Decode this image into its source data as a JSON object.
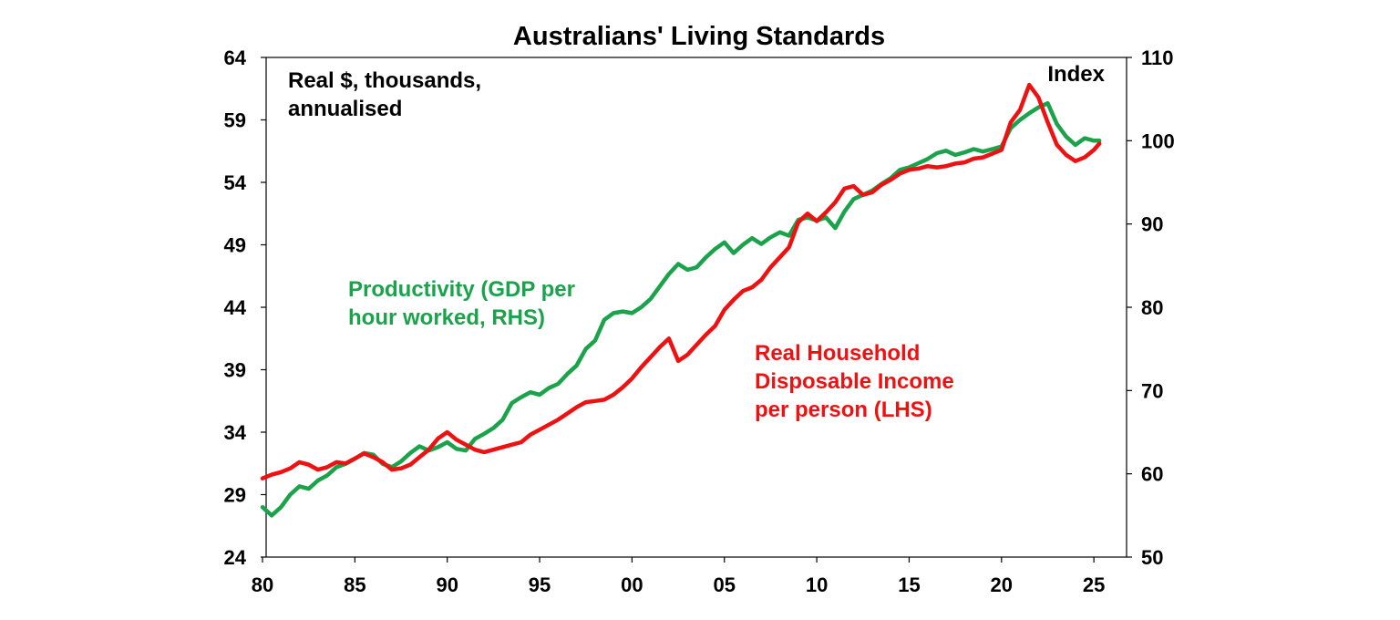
{
  "chart_data": {
    "type": "line",
    "title": "Australians' Living Standards",
    "left_axis_note": [
      "Real $, thousands,",
      "annualised"
    ],
    "right_axis_note": "Index",
    "x_axis": {
      "range": [
        1980,
        2025.5
      ],
      "ticks": [
        1980,
        1985,
        1990,
        1995,
        2000,
        2005,
        2010,
        2015,
        2020,
        2025
      ],
      "tick_labels": [
        "80",
        "85",
        "90",
        "95",
        "00",
        "05",
        "10",
        "15",
        "20",
        "25"
      ]
    },
    "y_left": {
      "range": [
        24,
        64
      ],
      "ticks": [
        24,
        29,
        34,
        39,
        44,
        49,
        54,
        59,
        64
      ]
    },
    "y_right": {
      "range": [
        50,
        110
      ],
      "ticks": [
        50,
        60,
        70,
        80,
        90,
        100,
        110
      ]
    },
    "grid": false,
    "series": [
      {
        "name": "Productivity (GDP per hour worked, RHS)",
        "label_lines": [
          "Productivity (GDP per",
          "hour worked, RHS)"
        ],
        "axis": "right",
        "color": "#1aa34a",
        "points": [
          [
            1980,
            56.0
          ],
          [
            1980.5,
            55.0
          ],
          [
            1981,
            56.0
          ],
          [
            1981.5,
            57.5
          ],
          [
            1982,
            58.5
          ],
          [
            1982.5,
            58.2
          ],
          [
            1983,
            59.2
          ],
          [
            1983.5,
            59.8
          ],
          [
            1984,
            60.8
          ],
          [
            1984.5,
            61.2
          ],
          [
            1985,
            61.8
          ],
          [
            1985.5,
            62.5
          ],
          [
            1986,
            62.3
          ],
          [
            1986.5,
            61.2
          ],
          [
            1987,
            60.8
          ],
          [
            1987.5,
            61.5
          ],
          [
            1988,
            62.5
          ],
          [
            1988.5,
            63.3
          ],
          [
            1989,
            62.8
          ],
          [
            1989.5,
            63.2
          ],
          [
            1990,
            63.8
          ],
          [
            1990.5,
            63.0
          ],
          [
            1991,
            62.8
          ],
          [
            1991.5,
            64.2
          ],
          [
            1992,
            64.8
          ],
          [
            1992.5,
            65.5
          ],
          [
            1993,
            66.5
          ],
          [
            1993.5,
            68.5
          ],
          [
            1994,
            69.2
          ],
          [
            1994.5,
            69.8
          ],
          [
            1995,
            69.5
          ],
          [
            1995.5,
            70.3
          ],
          [
            1996,
            70.8
          ],
          [
            1996.5,
            72.0
          ],
          [
            1997,
            73.0
          ],
          [
            1997.5,
            75.0
          ],
          [
            1998,
            76.0
          ],
          [
            1998.5,
            78.5
          ],
          [
            1999,
            79.3
          ],
          [
            1999.5,
            79.5
          ],
          [
            2000,
            79.3
          ],
          [
            2000.5,
            80.0
          ],
          [
            2001,
            81.0
          ],
          [
            2001.5,
            82.5
          ],
          [
            2002,
            84.0
          ],
          [
            2002.5,
            85.2
          ],
          [
            2003,
            84.5
          ],
          [
            2003.5,
            84.8
          ],
          [
            2004,
            86.0
          ],
          [
            2004.5,
            87.0
          ],
          [
            2005,
            87.8
          ],
          [
            2005.5,
            86.5
          ],
          [
            2006,
            87.5
          ],
          [
            2006.5,
            88.3
          ],
          [
            2007,
            87.6
          ],
          [
            2007.5,
            88.4
          ],
          [
            2008,
            89.0
          ],
          [
            2008.5,
            88.6
          ],
          [
            2009,
            90.5
          ],
          [
            2009.5,
            90.8
          ],
          [
            2010,
            90.4
          ],
          [
            2010.5,
            90.8
          ],
          [
            2011,
            89.5
          ],
          [
            2011.5,
            91.5
          ],
          [
            2012,
            93.0
          ],
          [
            2012.5,
            93.5
          ],
          [
            2013,
            94.0
          ],
          [
            2013.5,
            94.8
          ],
          [
            2014,
            95.5
          ],
          [
            2014.5,
            96.5
          ],
          [
            2015,
            96.8
          ],
          [
            2015.5,
            97.3
          ],
          [
            2016,
            97.8
          ],
          [
            2016.5,
            98.5
          ],
          [
            2017,
            98.8
          ],
          [
            2017.5,
            98.3
          ],
          [
            2018,
            98.6
          ],
          [
            2018.5,
            99.0
          ],
          [
            2019,
            98.7
          ],
          [
            2019.5,
            99.0
          ],
          [
            2020,
            99.3
          ],
          [
            2020.5,
            101.5
          ],
          [
            2021,
            102.5
          ],
          [
            2021.5,
            103.3
          ],
          [
            2022,
            104.0
          ],
          [
            2022.5,
            104.5
          ],
          [
            2023,
            102.0
          ],
          [
            2023.5,
            100.5
          ],
          [
            2024,
            99.5
          ],
          [
            2024.5,
            100.3
          ],
          [
            2025,
            100.0
          ],
          [
            2025.3,
            100.0
          ]
        ]
      },
      {
        "name": "Real Household Disposable Income per person (LHS)",
        "label_lines": [
          "Real Household",
          "Disposable Income",
          "per person (LHS)"
        ],
        "axis": "left",
        "color": "#ee1111",
        "points": [
          [
            1980,
            30.3
          ],
          [
            1980.5,
            30.6
          ],
          [
            1981,
            30.8
          ],
          [
            1981.5,
            31.1
          ],
          [
            1982,
            31.6
          ],
          [
            1982.5,
            31.4
          ],
          [
            1983,
            31.0
          ],
          [
            1983.5,
            31.2
          ],
          [
            1984,
            31.6
          ],
          [
            1984.5,
            31.5
          ],
          [
            1985,
            31.9
          ],
          [
            1985.5,
            32.3
          ],
          [
            1986,
            32.0
          ],
          [
            1986.5,
            31.6
          ],
          [
            1987,
            31.0
          ],
          [
            1987.5,
            31.1
          ],
          [
            1988,
            31.4
          ],
          [
            1988.5,
            32.0
          ],
          [
            1989,
            32.6
          ],
          [
            1989.5,
            33.5
          ],
          [
            1990,
            34.0
          ],
          [
            1990.5,
            33.4
          ],
          [
            1991,
            33.0
          ],
          [
            1991.5,
            32.6
          ],
          [
            1992,
            32.4
          ],
          [
            1992.5,
            32.6
          ],
          [
            1993,
            32.8
          ],
          [
            1993.5,
            33.0
          ],
          [
            1994,
            33.2
          ],
          [
            1994.5,
            33.8
          ],
          [
            1995,
            34.2
          ],
          [
            1995.5,
            34.6
          ],
          [
            1996,
            35.0
          ],
          [
            1996.5,
            35.5
          ],
          [
            1997,
            36.0
          ],
          [
            1997.5,
            36.4
          ],
          [
            1998,
            36.5
          ],
          [
            1998.5,
            36.6
          ],
          [
            1999,
            37.0
          ],
          [
            1999.5,
            37.6
          ],
          [
            2000,
            38.3
          ],
          [
            2000.5,
            39.2
          ],
          [
            2001,
            40.0
          ],
          [
            2001.5,
            40.8
          ],
          [
            2002,
            41.5
          ],
          [
            2002.5,
            39.7
          ],
          [
            2003,
            40.2
          ],
          [
            2003.5,
            41.0
          ],
          [
            2004,
            41.8
          ],
          [
            2004.5,
            42.5
          ],
          [
            2005,
            43.8
          ],
          [
            2005.5,
            44.6
          ],
          [
            2006,
            45.3
          ],
          [
            2006.5,
            45.6
          ],
          [
            2007,
            46.2
          ],
          [
            2007.5,
            47.2
          ],
          [
            2008,
            48.0
          ],
          [
            2008.5,
            48.8
          ],
          [
            2009,
            50.8
          ],
          [
            2009.5,
            51.5
          ],
          [
            2010,
            50.9
          ],
          [
            2010.5,
            51.6
          ],
          [
            2011,
            52.4
          ],
          [
            2011.5,
            53.5
          ],
          [
            2012,
            53.7
          ],
          [
            2012.5,
            53.0
          ],
          [
            2013,
            53.2
          ],
          [
            2013.5,
            53.8
          ],
          [
            2014,
            54.2
          ],
          [
            2014.5,
            54.7
          ],
          [
            2015,
            55.0
          ],
          [
            2015.5,
            55.1
          ],
          [
            2016,
            55.3
          ],
          [
            2016.5,
            55.2
          ],
          [
            2017,
            55.3
          ],
          [
            2017.5,
            55.5
          ],
          [
            2018,
            55.6
          ],
          [
            2018.5,
            55.9
          ],
          [
            2019,
            56.0
          ],
          [
            2019.5,
            56.3
          ],
          [
            2020,
            56.6
          ],
          [
            2020.5,
            58.8
          ],
          [
            2021,
            59.8
          ],
          [
            2021.5,
            61.8
          ],
          [
            2022,
            60.8
          ],
          [
            2022.5,
            58.8
          ],
          [
            2023,
            57.0
          ],
          [
            2023.5,
            56.2
          ],
          [
            2024,
            55.7
          ],
          [
            2024.5,
            56.0
          ],
          [
            2025,
            56.6
          ],
          [
            2025.3,
            57.1
          ]
        ]
      }
    ]
  }
}
